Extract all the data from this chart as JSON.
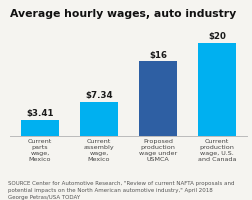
{
  "title": "Average hourly wages, auto industry",
  "categories": [
    "Current\nparts\nwage,\nMexico",
    "Current\nassembly\nwage,\nMexico",
    "Proposed\nproduction\nwage under\nUSMCA",
    "Current\nproduction\nwage, U.S.\nand Canada"
  ],
  "values": [
    3.41,
    7.34,
    16,
    20
  ],
  "labels": [
    "$3.41",
    "$7.34",
    "$16",
    "$20"
  ],
  "bar_colors": [
    "#00b0f0",
    "#00b0f0",
    "#2e5fa3",
    "#00b0f0"
  ],
  "ylim": [
    0,
    24
  ],
  "background_color": "#f5f4f0",
  "source_text": "SOURCE Center for Automotive Research, \"Review of current NAFTA proposals and\npotential impacts on the North American automotive industry,\" April 2018\nGeorge Petras/USA TODAY",
  "title_fontsize": 7.8,
  "label_fontsize": 6.2,
  "tick_fontsize": 4.6,
  "source_fontsize": 4.0
}
